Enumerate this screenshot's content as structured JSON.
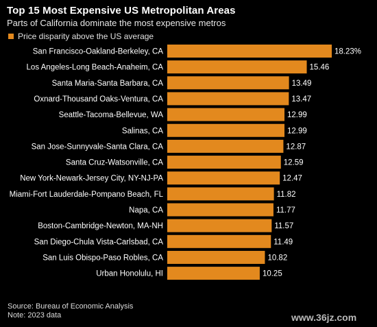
{
  "header": {
    "title": "Top 15 Most Expensive US Metropolitan Areas",
    "subtitle": "Parts of California dominate the most expensive metros"
  },
  "legend": {
    "label": "Price disparity above the US average"
  },
  "colors": {
    "bar": "#e3891e",
    "background": "#000000",
    "text": "#ffffff"
  },
  "chart_data": {
    "type": "bar",
    "orientation": "horizontal",
    "title": "Top 15 Most Expensive US Metropolitan Areas",
    "subtitle": "Parts of California dominate the most expensive metros",
    "series": [
      {
        "name": "Price disparity above the US average",
        "values": [
          18.23,
          15.46,
          13.49,
          13.47,
          12.99,
          12.99,
          12.87,
          12.59,
          12.47,
          11.82,
          11.77,
          11.57,
          11.49,
          10.82,
          10.25
        ]
      }
    ],
    "categories": [
      "San Francisco-Oakland-Berkeley, CA",
      "Los Angeles-Long Beach-Anaheim, CA",
      "Santa Maria-Santa Barbara, CA",
      "Oxnard-Thousand Oaks-Ventura, CA",
      "Seattle-Tacoma-Bellevue, WA",
      "Salinas, CA",
      "San Jose-Sunnyvale-Santa Clara, CA",
      "Santa Cruz-Watsonville, CA",
      "New York-Newark-Jersey City, NY-NJ-PA",
      "Miami-Fort Lauderdale-Pompano Beach, FL",
      "Napa, CA",
      "Boston-Cambridge-Newton, MA-NH",
      "San Diego-Chula Vista-Carlsbad, CA",
      "San Luis Obispo-Paso Robles, CA",
      "Urban Honolulu, HI"
    ],
    "value_labels": [
      "18.23%",
      "15.46",
      "13.49",
      "13.47",
      "12.99",
      "12.99",
      "12.87",
      "12.59",
      "12.47",
      "11.82",
      "11.77",
      "11.57",
      "11.49",
      "10.82",
      "10.25"
    ],
    "xlim": [
      0,
      18.23
    ],
    "grid": false,
    "legend_position": "top-left"
  },
  "footer": {
    "source": "Source: Bureau of Economic Analysis",
    "note": "Note: 2023 data"
  },
  "watermark": "www.36jz.com"
}
